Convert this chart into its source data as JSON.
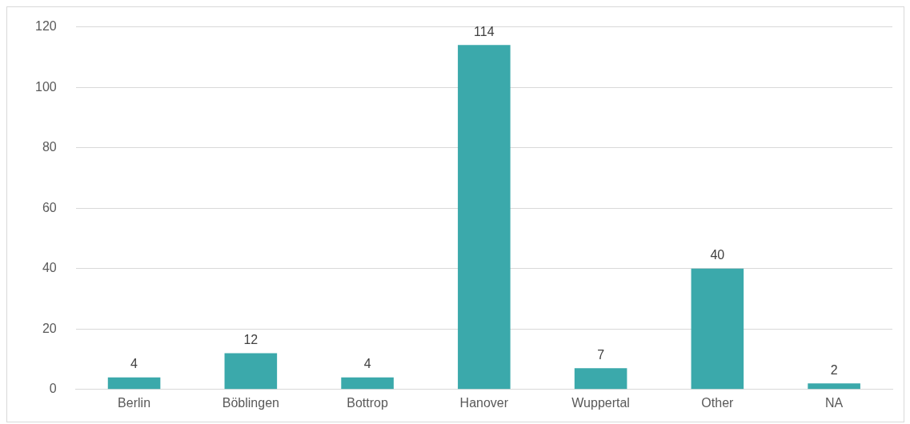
{
  "chart_data": {
    "type": "bar",
    "categories": [
      "Berlin",
      "Böblingen",
      "Bottrop",
      "Hanover",
      "Wuppertal",
      "Other",
      "NA"
    ],
    "values": [
      4,
      12,
      4,
      114,
      7,
      40,
      2
    ],
    "color": "#3ba9ab",
    "ylim": [
      0,
      120
    ],
    "yticks": [
      0,
      20,
      40,
      60,
      80,
      100,
      120
    ],
    "grid": "y",
    "data_labels": true,
    "legend": false
  }
}
